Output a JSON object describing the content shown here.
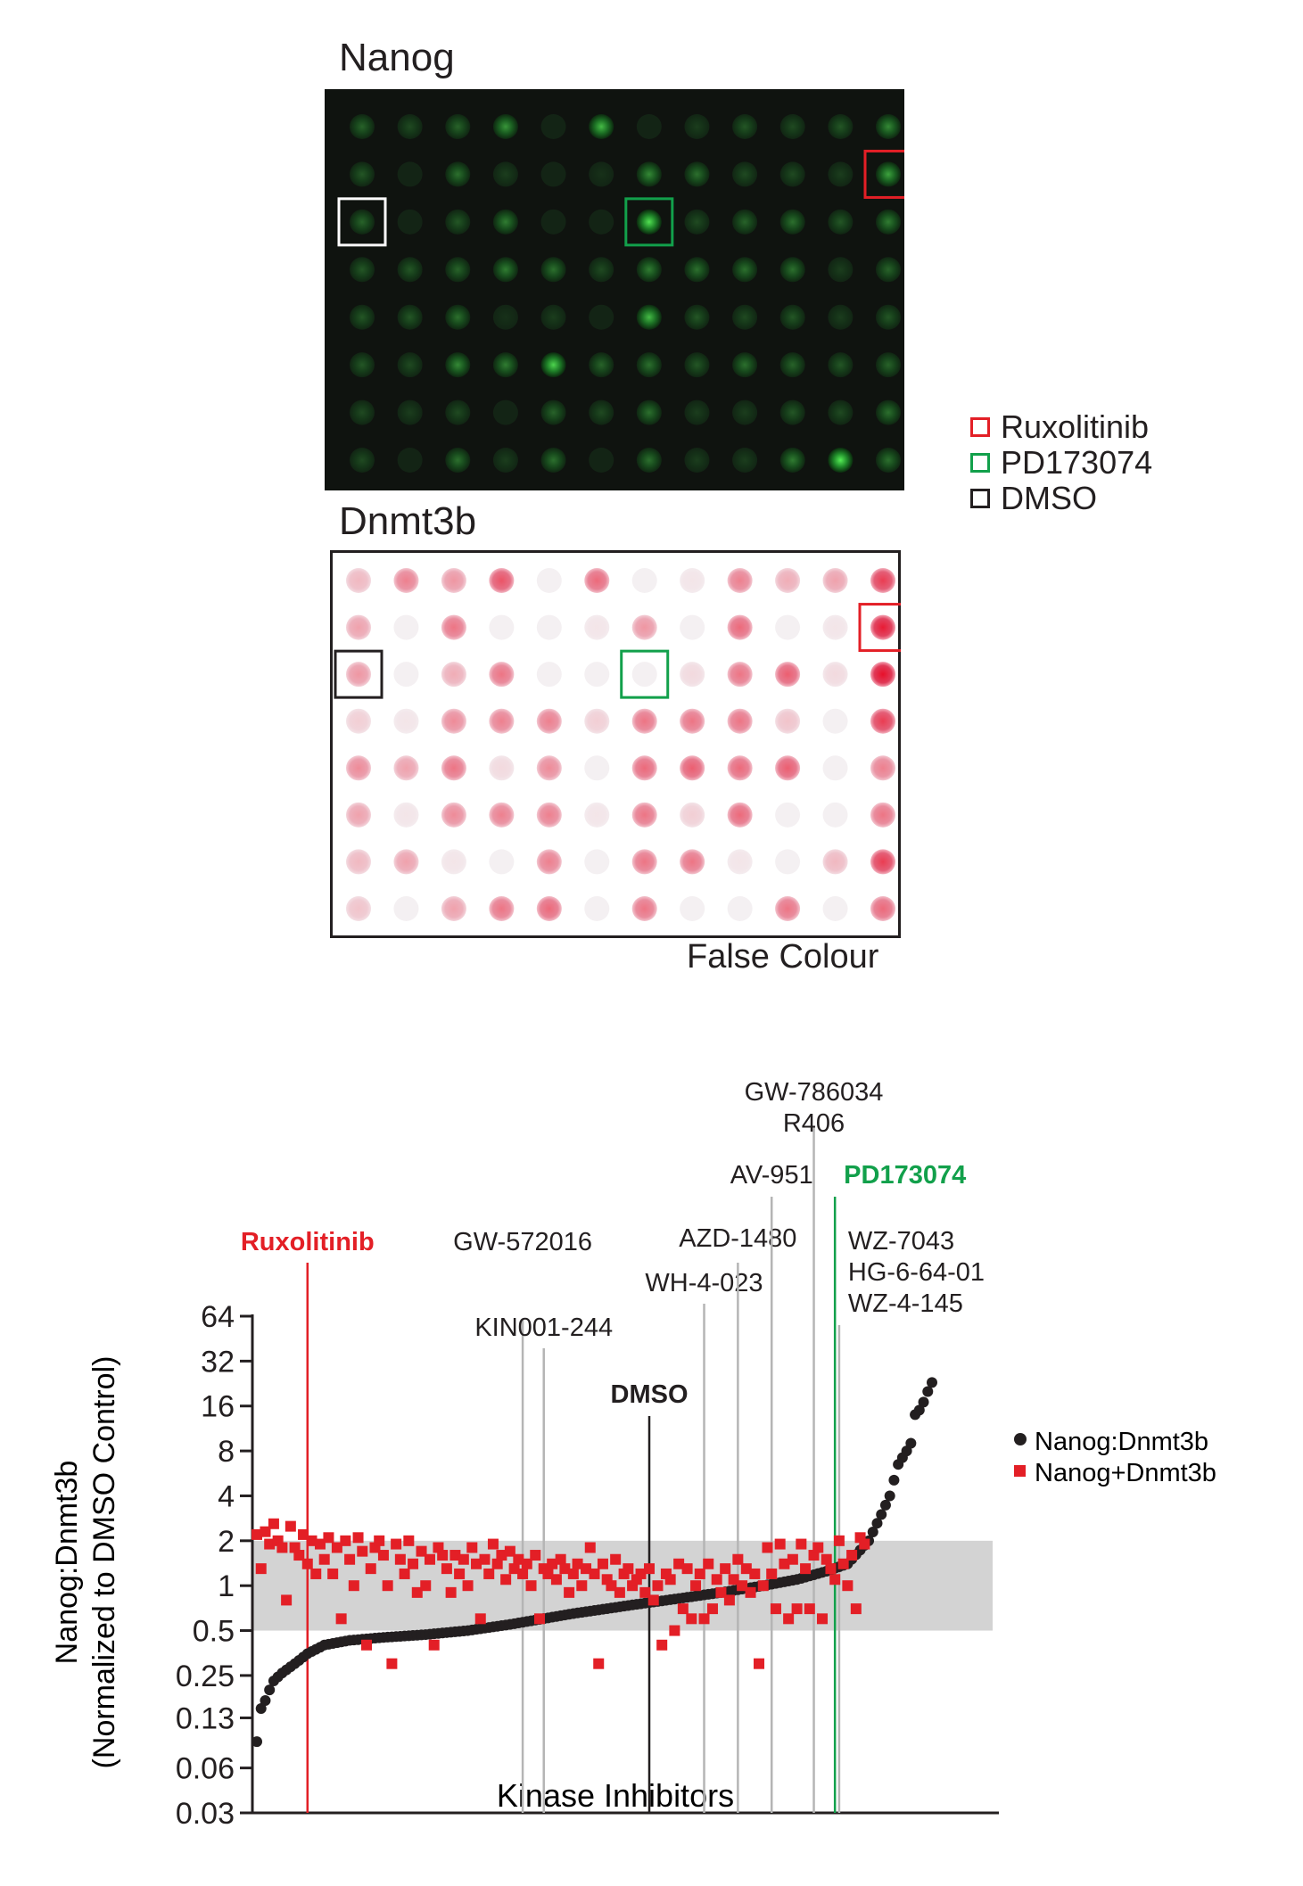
{
  "panels": {
    "top_title": "Nanog",
    "bottom_title": "Dnmt3b",
    "bottom_caption": "False Colour",
    "grid": {
      "rows": 8,
      "cols": 12
    },
    "highlights": [
      {
        "name": "Ruxolitinib",
        "row": 1,
        "col": 11,
        "color": "#e31f26"
      },
      {
        "name": "PD173074",
        "row": 2,
        "col": 6,
        "color": "#12a04b"
      },
      {
        "name": "DMSO",
        "row": 2,
        "col": 0,
        "color_top": "#ffffff",
        "color_bottom": "#231f20"
      }
    ],
    "nanog_intensity": [
      [
        0.25,
        0.15,
        0.25,
        0.45,
        0,
        0.6,
        0,
        0.1,
        0.2,
        0.15,
        0.2,
        0.4
      ],
      [
        0.2,
        0,
        0.3,
        0.1,
        0,
        0.05,
        0.4,
        0.3,
        0.15,
        0.15,
        0.1,
        0.5
      ],
      [
        0.25,
        0,
        0.2,
        0.35,
        0,
        0,
        0.75,
        0.15,
        0.25,
        0.3,
        0.2,
        0.35
      ],
      [
        0.2,
        0.2,
        0.25,
        0.35,
        0.3,
        0.15,
        0.35,
        0.3,
        0.3,
        0.3,
        0.1,
        0.25
      ],
      [
        0.2,
        0.2,
        0.3,
        0.05,
        0.1,
        0,
        0.6,
        0.2,
        0.15,
        0.2,
        0.1,
        0.2
      ],
      [
        0.2,
        0.15,
        0.4,
        0.35,
        0.7,
        0.25,
        0.3,
        0.2,
        0.3,
        0.25,
        0.2,
        0.25
      ],
      [
        0.15,
        0.1,
        0.15,
        0,
        0.25,
        0.15,
        0.3,
        0.1,
        0.1,
        0.2,
        0.15,
        0.3
      ],
      [
        0.15,
        0,
        0.3,
        0.1,
        0.3,
        0,
        0.3,
        0.1,
        0.1,
        0.35,
        0.8,
        0.3
      ]
    ],
    "dnmt3b_intensity": [
      [
        0.25,
        0.5,
        0.4,
        0.7,
        0,
        0.6,
        0,
        0.05,
        0.5,
        0.3,
        0.35,
        0.8
      ],
      [
        0.35,
        0,
        0.55,
        0,
        0,
        0.05,
        0.4,
        0,
        0.6,
        0,
        0.05,
        0.95
      ],
      [
        0.4,
        0,
        0.3,
        0.55,
        0,
        0,
        0,
        0.1,
        0.55,
        0.65,
        0.1,
        1.0
      ],
      [
        0.15,
        0.05,
        0.45,
        0.5,
        0.5,
        0.15,
        0.55,
        0.55,
        0.55,
        0.2,
        0,
        0.8
      ],
      [
        0.45,
        0.35,
        0.55,
        0.1,
        0.45,
        0,
        0.6,
        0.65,
        0.6,
        0.65,
        0,
        0.5
      ],
      [
        0.35,
        0.05,
        0.45,
        0.5,
        0.5,
        0.05,
        0.55,
        0.15,
        0.6,
        0,
        0,
        0.55
      ],
      [
        0.25,
        0.35,
        0.05,
        0,
        0.5,
        0,
        0.55,
        0.55,
        0.05,
        0,
        0.25,
        0.8
      ],
      [
        0.2,
        0,
        0.35,
        0.55,
        0.6,
        0,
        0.55,
        0,
        0,
        0.55,
        0,
        0.6
      ]
    ]
  },
  "legend_boxes": [
    {
      "label": "Ruxolitinib",
      "color": "#e31f26"
    },
    {
      "label": "PD173074",
      "color": "#12a04b"
    },
    {
      "label": "DMSO",
      "color": "#231f20"
    }
  ],
  "chart_data": {
    "type": "scatter",
    "xlabel": "Kinase Inhibitors",
    "ylabel": "Nanog:Dnmt3b",
    "ylabel_line2": "(Normalized to DMSO Control)",
    "y_scale": "log2",
    "ylim": [
      0.03,
      64
    ],
    "y_ticks": [
      64,
      32,
      16,
      8,
      4,
      2,
      1,
      0.5,
      0.25,
      0.13,
      0.06,
      0.03
    ],
    "y_tick_labels": [
      "64",
      "32",
      "16",
      "8",
      "4",
      "2",
      "1",
      "0.5",
      "0.25",
      "0.13",
      "0.06",
      "0.03"
    ],
    "band": [
      0.5,
      2
    ],
    "x_count": 155,
    "series": [
      {
        "name": "Nanog:Dnmt3b",
        "color": "#231f20",
        "marker": "circle",
        "anchors": [
          [
            0,
            0.09
          ],
          [
            1,
            0.15
          ],
          [
            2,
            0.17
          ],
          [
            3,
            0.2
          ],
          [
            4,
            0.23
          ],
          [
            6,
            0.26
          ],
          [
            9,
            0.3
          ],
          [
            12,
            0.35
          ],
          [
            16,
            0.4
          ],
          [
            22,
            0.43
          ],
          [
            30,
            0.45
          ],
          [
            40,
            0.47
          ],
          [
            50,
            0.5
          ],
          [
            60,
            0.55
          ],
          [
            75,
            0.65
          ],
          [
            90,
            0.75
          ],
          [
            100,
            0.82
          ],
          [
            110,
            0.9
          ],
          [
            120,
            1.0
          ],
          [
            128,
            1.1
          ],
          [
            135,
            1.25
          ],
          [
            140,
            1.4
          ],
          [
            145,
            2.0
          ],
          [
            148,
            3.0
          ],
          [
            150,
            4.0
          ],
          [
            152,
            6.5
          ],
          [
            154,
            8.0
          ],
          [
            155,
            9.0
          ],
          [
            156,
            14.0
          ],
          [
            157,
            15.0
          ],
          [
            158,
            17.0
          ],
          [
            159,
            20.0
          ],
          [
            160,
            23.0
          ]
        ]
      },
      {
        "name": "Nanog+Dnmt3b",
        "color": "#e31f26",
        "marker": "square",
        "values": [
          2.2,
          1.3,
          2.3,
          1.9,
          2.6,
          2.0,
          1.8,
          0.8,
          2.5,
          1.8,
          1.6,
          2.2,
          1.4,
          2.0,
          1.2,
          1.9,
          1.5,
          2.1,
          1.2,
          1.8,
          0.6,
          2.0,
          1.5,
          1.0,
          2.1,
          1.7,
          0.4,
          1.3,
          1.8,
          2.0,
          1.6,
          1.0,
          0.3,
          1.9,
          1.5,
          1.2,
          2.0,
          1.4,
          0.9,
          1.7,
          1.0,
          1.5,
          0.4,
          1.8,
          1.6,
          1.3,
          0.9,
          1.6,
          1.2,
          1.5,
          1.0,
          1.8,
          1.4,
          0.6,
          1.5,
          1.2,
          1.9,
          1.4,
          1.6,
          1.1,
          1.7,
          1.3,
          1.5,
          1.2,
          1.4,
          1.0,
          1.6,
          0.6,
          1.3,
          1.2,
          1.4,
          1.1,
          1.5,
          1.3,
          0.9,
          1.2,
          1.4,
          1.0,
          1.3,
          1.8,
          1.2,
          0.3,
          1.4,
          1.1,
          1.0,
          1.5,
          0.9,
          1.2,
          1.3,
          1.0,
          1.1,
          1.2,
          0.9,
          1.3,
          0.8,
          1.0,
          0.4,
          1.2,
          1.1,
          0.5,
          1.4,
          0.7,
          1.3,
          0.6,
          1.0,
          1.2,
          0.6,
          1.4,
          0.7,
          1.1,
          0.9,
          1.3,
          0.8,
          1.1,
          1.5,
          1.0,
          1.3,
          0.9,
          1.2,
          0.3,
          1.0,
          1.8,
          1.2,
          0.7,
          1.9,
          1.4,
          0.6,
          1.5,
          0.7,
          1.9,
          1.3,
          0.7,
          1.6,
          1.8,
          0.6,
          1.5,
          1.3,
          1.1,
          2.0,
          1.4,
          1.0,
          1.6,
          0.7,
          2.1,
          1.9
        ]
      }
    ],
    "annotations": [
      {
        "label": "Ruxolitinib",
        "lines": [
          "Ruxolitinib"
        ],
        "index": 12,
        "color": "#e31f26",
        "bold": true
      },
      {
        "label": "GW-572016",
        "lines": [
          "GW-572016"
        ],
        "index": 63,
        "color": "#231f20",
        "bold": false
      },
      {
        "label": "KIN001-244",
        "lines": [
          "KIN001-244"
        ],
        "index": 68,
        "color": "#231f20",
        "bold": false
      },
      {
        "label": "DMSO",
        "lines": [
          "DMSO"
        ],
        "index": 93,
        "color": "#231f20",
        "bold": true
      },
      {
        "label": "WH-4-023",
        "lines": [
          "WH-4-023"
        ],
        "index": 106,
        "color": "#231f20",
        "bold": false
      },
      {
        "label": "AZD-1480",
        "lines": [
          "AZD-1480"
        ],
        "index": 114,
        "color": "#231f20",
        "bold": false
      },
      {
        "label": "AV-951",
        "lines": [
          "AV-951"
        ],
        "index": 122,
        "color": "#231f20",
        "bold": false
      },
      {
        "label": "GW-786034 R406",
        "lines": [
          "GW-786034",
          "R406"
        ],
        "index": 132,
        "color": "#231f20",
        "bold": false
      },
      {
        "label": "PD173074",
        "lines": [
          "PD173074"
        ],
        "index": 137,
        "color": "#12a04b",
        "bold": true
      },
      {
        "label": "WZ-7043 HG-6-64-01 WZ-4-145",
        "lines": [
          "WZ-7043",
          "HG-6-64-01",
          "WZ-4-145"
        ],
        "index": 138,
        "color": "#231f20",
        "bold": false
      }
    ],
    "legend": {
      "placement": "right",
      "entries": [
        "Nanog:Dnmt3b",
        "Nanog+Dnmt3b"
      ]
    }
  }
}
